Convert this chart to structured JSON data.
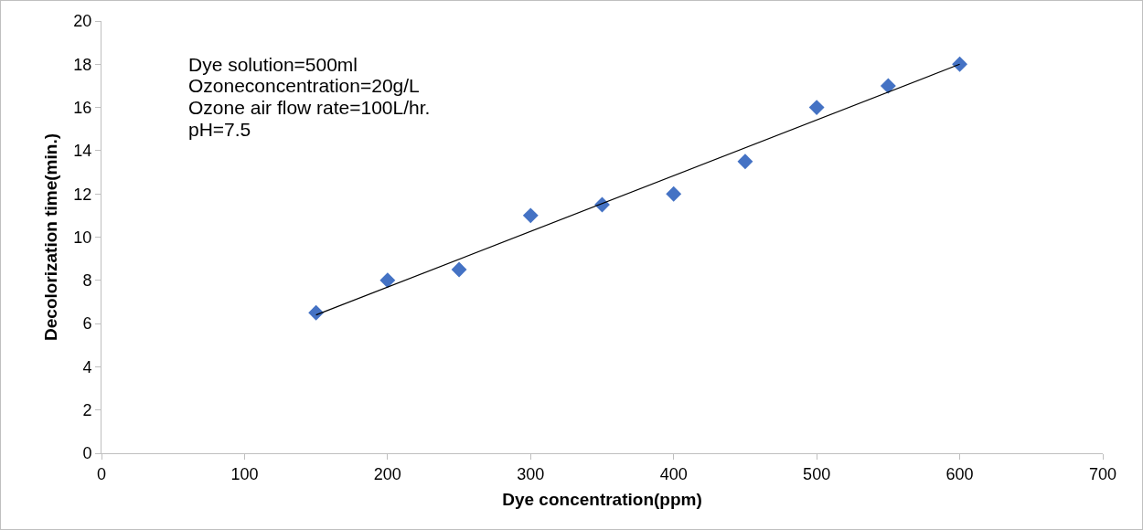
{
  "chart_data": {
    "type": "scatter",
    "xlabel": "Dye concentration(ppm)",
    "ylabel": "Decolorization time(min.)",
    "annotations": [
      "Dye solution=500ml",
      "Ozoneconcentration=20g/L",
      "Ozone air flow rate=100L/hr.",
      "pH=7.5"
    ],
    "x": [
      150,
      200,
      250,
      300,
      350,
      400,
      450,
      500,
      550,
      600
    ],
    "series": [
      {
        "color": "#4472c4",
        "values": [
          6.5,
          8,
          8.5,
          11,
          11.5,
          12,
          13.5,
          16,
          17,
          18
        ],
        "marker": "diamond"
      },
      {
        "type": "line",
        "color": "#000000",
        "x": [
          150,
          600
        ],
        "values": [
          6.4,
          18.0
        ],
        "marker": "none",
        "line_style": "solid"
      }
    ],
    "xlim": [
      0,
      700
    ],
    "xticks": [
      0,
      100,
      200,
      300,
      400,
      500,
      600,
      700
    ],
    "ylim": [
      0,
      20
    ],
    "yticks": [
      0,
      2,
      4,
      6,
      8,
      10,
      12,
      14,
      16,
      18,
      20
    ],
    "grid": false
  }
}
